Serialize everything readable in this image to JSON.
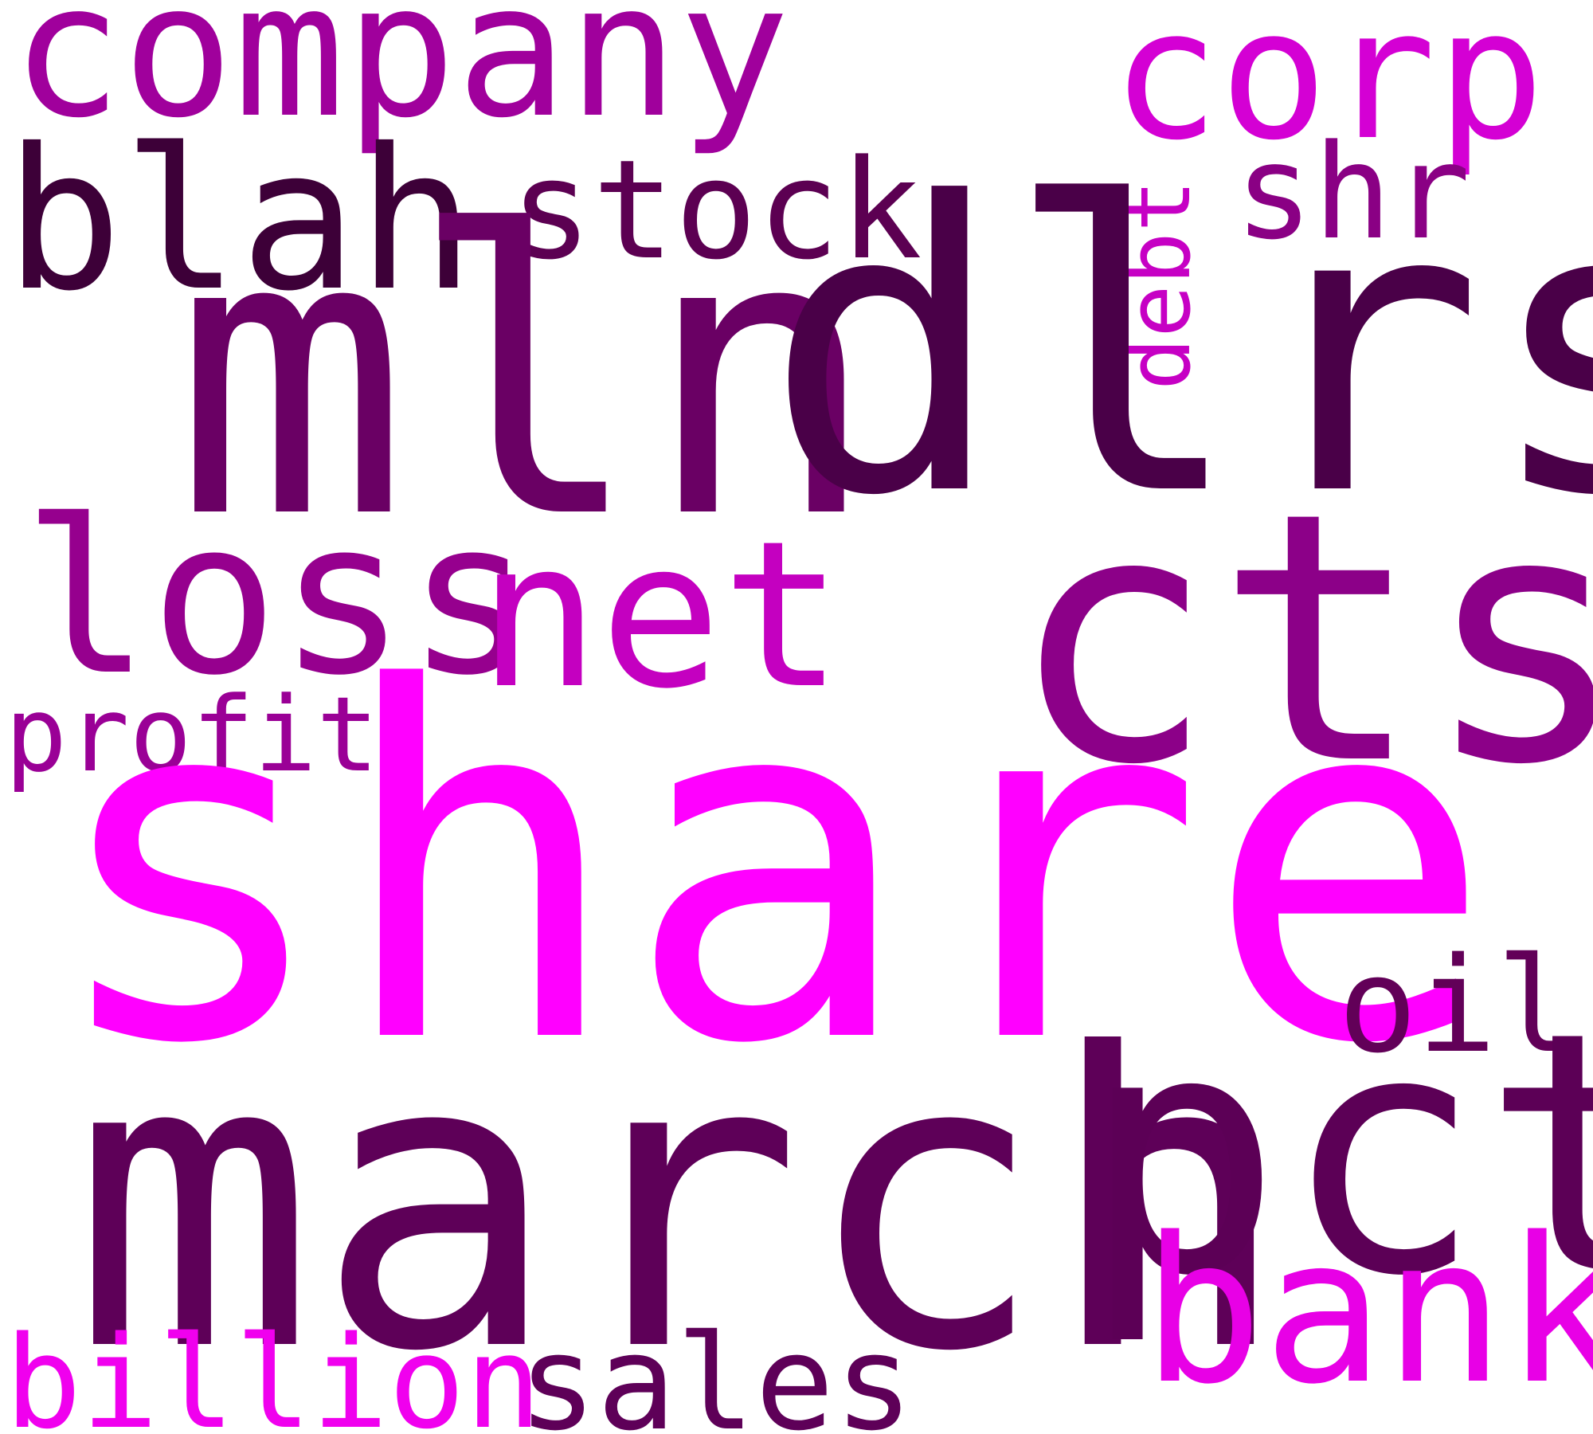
{
  "words": {
    "company": {
      "text": "company",
      "color": "#a0009c"
    },
    "corp": {
      "text": "corp",
      "color": "#d400d4"
    },
    "blah": {
      "text": "blah",
      "color": "#3d0038"
    },
    "stock": {
      "text": "stock",
      "color": "#5c0052"
    },
    "shr": {
      "text": "shr",
      "color": "#8a0084"
    },
    "debt": {
      "text": "debt",
      "color": "#c600c4"
    },
    "mln": {
      "text": "mln",
      "color": "#6a0064"
    },
    "dlrs": {
      "text": "dlrs",
      "color": "#4a0048"
    },
    "loss": {
      "text": "loss",
      "color": "#96008e"
    },
    "net": {
      "text": "net",
      "color": "#c400c0"
    },
    "cts": {
      "text": "cts",
      "color": "#8c0088"
    },
    "profit": {
      "text": "profit",
      "color": "#9a0096"
    },
    "share": {
      "text": "share",
      "color": "#ff00ff"
    },
    "oil": {
      "text": "oil",
      "color": "#620058"
    },
    "march": {
      "text": "march",
      "color": "#5e0058"
    },
    "pct": {
      "text": "pct",
      "color": "#5c0056"
    },
    "bank": {
      "text": "bank",
      "color": "#e800e6"
    },
    "billion": {
      "text": "billion",
      "color": "#f000ee"
    },
    "sales": {
      "text": "sales",
      "color": "#5e0058"
    }
  }
}
